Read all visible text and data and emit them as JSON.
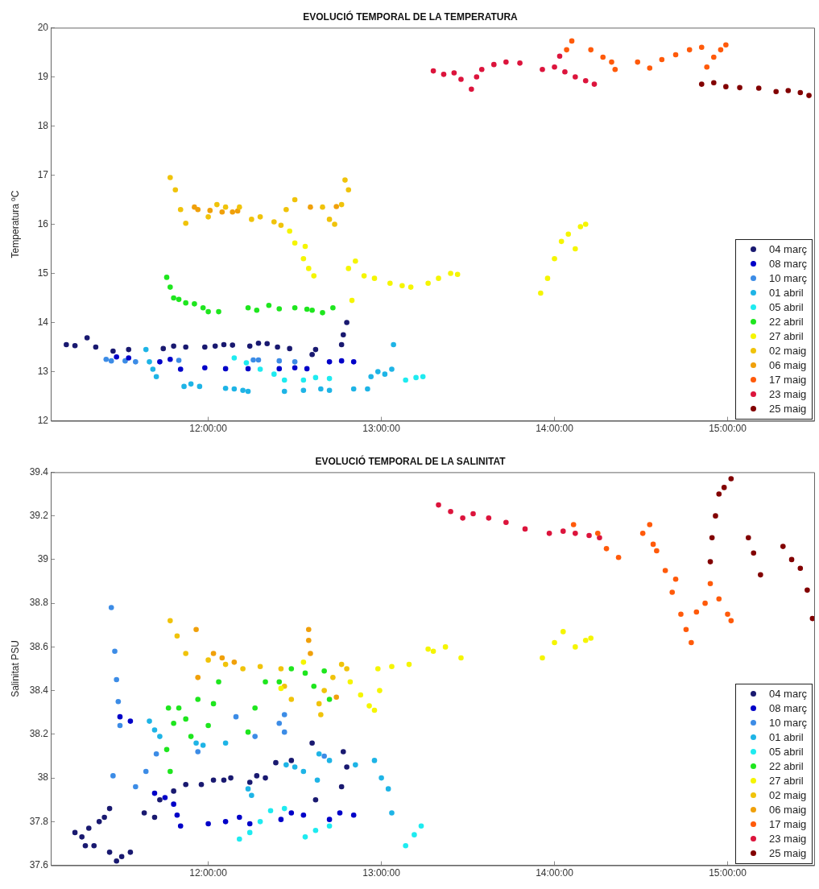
{
  "chart_data": [
    {
      "type": "scatter",
      "title": "EVOLUCIÓ TEMPORAL DE LA TEMPERATURA",
      "ylabel": "Temperatura ºC",
      "xlim": [
        11.09,
        15.5
      ],
      "xticks": [
        {
          "value": 12,
          "label": "12:00:00"
        },
        {
          "value": 13,
          "label": "13:00:00"
        },
        {
          "value": 14,
          "label": "14:00:00"
        },
        {
          "value": 15,
          "label": "15:00:00"
        }
      ],
      "ylim": [
        12,
        20
      ],
      "yticks": [
        12,
        13,
        14,
        15,
        16,
        17,
        18,
        19,
        20
      ],
      "legend": "bottom right",
      "marker": "circle",
      "series": [
        {
          "name": "04 març",
          "color": "#191970",
          "x": [
            11.18,
            11.23,
            11.3,
            11.35,
            11.45,
            11.54,
            11.74,
            11.8,
            11.87,
            11.98,
            12.04,
            12.09,
            12.14,
            12.24,
            12.29,
            12.34,
            12.4,
            12.47,
            12.6,
            12.62,
            12.77,
            12.78,
            12.8
          ],
          "values": [
            13.55,
            13.53,
            13.69,
            13.5,
            13.42,
            13.45,
            13.47,
            13.52,
            13.5,
            13.5,
            13.52,
            13.55,
            13.54,
            13.52,
            13.58,
            13.57,
            13.5,
            13.47,
            13.35,
            13.45,
            13.55,
            13.75,
            14.0
          ]
        },
        {
          "name": "08 març",
          "color": "#0000c8",
          "x": [
            11.47,
            11.54,
            11.72,
            11.78,
            11.84,
            11.98,
            12.1,
            12.23,
            12.41,
            12.5,
            12.57,
            12.7,
            12.77,
            12.84
          ],
          "values": [
            13.3,
            13.28,
            13.2,
            13.25,
            13.05,
            13.08,
            13.06,
            13.06,
            13.06,
            13.08,
            13.06,
            13.2,
            13.22,
            13.2
          ]
        },
        {
          "name": "10 març",
          "color": "#3c8ce6",
          "x": [
            11.41,
            11.44,
            11.52,
            11.58,
            11.83,
            12.26,
            12.29,
            12.41,
            12.5
          ],
          "values": [
            13.25,
            13.22,
            13.22,
            13.2,
            13.23,
            13.24,
            13.24,
            13.22,
            13.2
          ]
        },
        {
          "name": "01 abril",
          "color": "#1eb4e6",
          "x": [
            11.64,
            11.66,
            11.68,
            11.7,
            11.86,
            11.9,
            11.95,
            12.1,
            12.15,
            12.2,
            12.23,
            12.44,
            12.55,
            12.65,
            12.7,
            12.84,
            12.92,
            12.94,
            12.98,
            13.02,
            13.06,
            13.07
          ],
          "values": [
            13.45,
            13.2,
            13.05,
            12.9,
            12.7,
            12.75,
            12.7,
            12.66,
            12.65,
            12.62,
            12.6,
            12.6,
            12.62,
            12.65,
            12.62,
            12.65,
            12.65,
            12.9,
            13.0,
            12.95,
            13.05,
            13.55
          ]
        },
        {
          "name": "05 abril",
          "color": "#1eebf0",
          "x": [
            12.15,
            12.22,
            12.3,
            12.38,
            12.44,
            12.55,
            12.62,
            12.7,
            13.14,
            13.2,
            13.24
          ],
          "values": [
            13.28,
            13.18,
            13.05,
            12.95,
            12.83,
            12.83,
            12.88,
            12.86,
            12.83,
            12.88,
            12.9
          ]
        },
        {
          "name": "22 abril",
          "color": "#1ee61e",
          "x": [
            11.76,
            11.78,
            11.8,
            11.83,
            11.87,
            11.92,
            11.97,
            12.0,
            12.06,
            12.23,
            12.28,
            12.35,
            12.41,
            12.5,
            12.57,
            12.6,
            12.66,
            12.72
          ],
          "values": [
            14.92,
            14.72,
            14.5,
            14.47,
            14.4,
            14.38,
            14.3,
            14.22,
            14.22,
            14.3,
            14.25,
            14.35,
            14.28,
            14.3,
            14.27,
            14.25,
            14.2,
            14.3
          ]
        },
        {
          "name": "27 abril",
          "color": "#f5f500",
          "x": [
            12.47,
            12.5,
            12.56,
            12.55,
            12.58,
            12.61,
            12.81,
            12.85,
            12.9,
            12.96,
            13.05,
            13.12,
            13.17,
            12.83,
            13.27,
            13.33,
            13.4,
            13.44,
            13.92,
            13.96,
            14.0,
            14.04,
            14.08,
            14.12,
            14.15,
            14.18
          ],
          "values": [
            15.86,
            15.62,
            15.55,
            15.3,
            15.1,
            14.95,
            15.1,
            15.25,
            14.95,
            14.9,
            14.8,
            14.75,
            14.72,
            14.45,
            14.8,
            14.9,
            15.0,
            14.98,
            14.6,
            14.9,
            15.3,
            15.65,
            15.8,
            15.5,
            15.95,
            16.0
          ]
        },
        {
          "name": "02 maig",
          "color": "#f0c30a",
          "x": [
            11.78,
            11.81,
            11.84,
            11.87,
            12.0,
            12.05,
            12.1,
            12.18,
            12.25,
            12.3,
            12.38,
            12.42,
            12.45,
            12.5,
            12.66,
            12.7,
            12.73,
            12.77,
            12.79,
            12.81
          ],
          "values": [
            16.95,
            16.7,
            16.3,
            16.02,
            16.15,
            16.4,
            16.35,
            16.35,
            16.1,
            16.15,
            16.05,
            15.98,
            16.3,
            16.5,
            16.35,
            16.1,
            16.0,
            16.4,
            16.9,
            16.7
          ]
        },
        {
          "name": "06 maig",
          "color": "#f0a00a",
          "x": [
            11.92,
            11.94,
            12.01,
            12.08,
            12.14,
            12.17,
            12.59,
            12.74
          ],
          "values": [
            16.35,
            16.3,
            16.28,
            16.25,
            16.25,
            16.27,
            16.35,
            16.36
          ]
        },
        {
          "name": "17 maig",
          "color": "#ff5a0a",
          "x": [
            14.07,
            14.1,
            14.21,
            14.28,
            14.33,
            14.35,
            14.48,
            14.55,
            14.62,
            14.7,
            14.78,
            14.85,
            14.88,
            14.92,
            14.96,
            14.99
          ],
          "values": [
            19.55,
            19.73,
            19.55,
            19.4,
            19.3,
            19.15,
            19.3,
            19.18,
            19.35,
            19.45,
            19.55,
            19.6,
            19.2,
            19.4,
            19.55,
            19.65
          ]
        },
        {
          "name": "23 maig",
          "color": "#dc143c",
          "x": [
            13.3,
            13.36,
            13.42,
            13.46,
            13.52,
            13.55,
            13.58,
            13.65,
            13.72,
            13.8,
            13.93,
            14.0,
            14.03,
            14.06,
            14.12,
            14.18,
            14.23
          ],
          "values": [
            19.12,
            19.05,
            19.08,
            18.95,
            18.75,
            19.0,
            19.15,
            19.25,
            19.3,
            19.28,
            19.15,
            19.2,
            19.42,
            19.1,
            19.0,
            18.92,
            18.85
          ]
        },
        {
          "name": "25 maig",
          "color": "#820000",
          "x": [
            14.85,
            14.92,
            14.99,
            15.07,
            15.18,
            15.28,
            15.35,
            15.42,
            15.47
          ],
          "values": [
            18.85,
            18.88,
            18.8,
            18.78,
            18.77,
            18.7,
            18.72,
            18.68,
            18.62
          ]
        }
      ]
    },
    {
      "type": "scatter",
      "title": "EVOLUCIÓ TEMPORAL DE LA SALINITAT",
      "ylabel": "Salinitat PSU",
      "xlim": [
        11.09,
        15.5
      ],
      "xticks": [
        {
          "value": 12,
          "label": "12:00:00"
        },
        {
          "value": 13,
          "label": "13:00:00"
        },
        {
          "value": 14,
          "label": "14:00:00"
        },
        {
          "value": 15,
          "label": "15:00:00"
        }
      ],
      "ylim": [
        37.6,
        39.4
      ],
      "yticks": [
        37.6,
        37.8,
        38,
        38.2,
        38.4,
        38.6,
        38.8,
        39,
        39.2,
        39.4
      ],
      "legend": "bottom right",
      "marker": "circle",
      "series": [
        {
          "name": "04 març",
          "color": "#191970",
          "x": [
            11.23,
            11.27,
            11.31,
            11.29,
            11.34,
            11.37,
            11.4,
            11.43,
            11.43,
            11.47,
            11.5,
            11.55,
            11.63,
            11.69,
            11.72,
            11.8,
            11.87,
            11.96,
            12.03,
            12.09,
            12.13,
            12.24,
            12.28,
            12.33,
            12.39,
            12.48,
            12.6,
            12.62,
            12.77,
            12.78,
            12.8
          ],
          "values": [
            37.75,
            37.73,
            37.77,
            37.69,
            37.69,
            37.8,
            37.82,
            37.86,
            37.66,
            37.62,
            37.64,
            37.66,
            37.84,
            37.82,
            37.9,
            37.94,
            37.97,
            37.97,
            37.99,
            37.99,
            38.0,
            37.98,
            38.01,
            38.0,
            38.07,
            38.08,
            38.16,
            37.9,
            37.96,
            38.12,
            38.05
          ]
        },
        {
          "name": "08 març",
          "color": "#0000c8",
          "x": [
            11.49,
            11.55,
            11.69,
            11.75,
            11.8,
            11.82,
            11.84,
            12.0,
            12.1,
            12.18,
            12.24,
            12.42,
            12.48,
            12.55,
            12.7,
            12.76,
            12.84
          ],
          "values": [
            38.28,
            38.26,
            37.93,
            37.91,
            37.88,
            37.83,
            37.78,
            37.79,
            37.8,
            37.82,
            37.79,
            37.81,
            37.84,
            37.83,
            37.81,
            37.84,
            37.83
          ]
        },
        {
          "name": "10 març",
          "color": "#3c8ce6",
          "x": [
            11.44,
            11.46,
            11.47,
            11.48,
            11.49,
            11.45,
            11.58,
            11.64,
            11.7,
            11.94,
            12.16,
            12.27,
            12.41,
            12.44,
            12.44,
            12.67
          ],
          "values": [
            38.78,
            38.58,
            38.45,
            38.35,
            38.24,
            38.01,
            37.96,
            38.03,
            38.11,
            38.12,
            38.28,
            38.19,
            38.25,
            38.29,
            38.21,
            38.1
          ]
        },
        {
          "name": "01 abril",
          "color": "#1eb4e6",
          "x": [
            11.66,
            11.69,
            11.72,
            11.93,
            11.97,
            12.1,
            12.23,
            12.25,
            12.45,
            12.5,
            12.55,
            12.63,
            12.64,
            12.7,
            12.85,
            12.96,
            13.0,
            13.04,
            13.06
          ],
          "values": [
            38.26,
            38.22,
            38.19,
            38.16,
            38.15,
            38.16,
            37.95,
            37.92,
            38.06,
            38.05,
            38.03,
            37.99,
            38.11,
            38.08,
            38.06,
            38.08,
            38.0,
            37.95,
            37.84
          ]
        },
        {
          "name": "05 abril",
          "color": "#1eebf0",
          "x": [
            12.18,
            12.24,
            12.3,
            12.36,
            12.44,
            12.56,
            12.62,
            12.7,
            13.14,
            13.19,
            13.23
          ],
          "values": [
            37.72,
            37.75,
            37.8,
            37.85,
            37.86,
            37.73,
            37.76,
            37.78,
            37.69,
            37.74,
            37.78
          ]
        },
        {
          "name": "22 abril",
          "color": "#1ee61e",
          "x": [
            11.76,
            11.78,
            11.77,
            11.8,
            11.83,
            11.87,
            11.9,
            11.94,
            12.0,
            12.03,
            12.06,
            12.23,
            12.27,
            12.33,
            12.41,
            12.48,
            12.56,
            12.61,
            12.67,
            12.7
          ],
          "values": [
            38.13,
            38.03,
            38.32,
            38.25,
            38.32,
            38.27,
            38.19,
            38.36,
            38.24,
            38.34,
            38.44,
            38.21,
            38.32,
            38.44,
            38.44,
            38.5,
            38.48,
            38.42,
            38.49,
            38.36
          ]
        },
        {
          "name": "27 abril",
          "color": "#f5f500",
          "x": [
            12.42,
            12.55,
            12.82,
            12.88,
            12.93,
            12.96,
            12.99,
            12.98,
            13.06,
            13.16,
            13.27,
            13.3,
            13.37,
            13.46,
            13.93,
            14.0,
            14.05,
            14.12,
            14.18,
            14.21
          ],
          "values": [
            38.41,
            38.53,
            38.44,
            38.38,
            38.33,
            38.31,
            38.4,
            38.5,
            38.51,
            38.52,
            38.59,
            38.58,
            38.6,
            38.55,
            38.55,
            38.62,
            38.67,
            38.6,
            38.63,
            38.64
          ]
        },
        {
          "name": "02 maig",
          "color": "#f0c30a",
          "x": [
            11.78,
            11.82,
            11.87,
            12.0,
            12.1,
            12.2,
            12.3,
            12.42,
            12.44,
            12.48,
            12.64,
            12.65,
            12.67,
            12.72,
            12.77,
            12.8
          ],
          "values": [
            38.72,
            38.65,
            38.57,
            38.54,
            38.52,
            38.5,
            38.51,
            38.5,
            38.42,
            38.36,
            38.34,
            38.29,
            38.4,
            38.46,
            38.52,
            38.5
          ]
        },
        {
          "name": "06 maig",
          "color": "#f0a00a",
          "x": [
            11.93,
            11.94,
            12.03,
            12.08,
            12.15,
            12.58,
            12.58,
            12.59,
            12.74
          ],
          "values": [
            38.68,
            38.46,
            38.57,
            38.55,
            38.53,
            38.68,
            38.63,
            38.57,
            38.37
          ]
        },
        {
          "name": "17 maig",
          "color": "#ff5a0a",
          "x": [
            14.11,
            14.25,
            14.3,
            14.37,
            14.51,
            14.55,
            14.57,
            14.59,
            14.64,
            14.7,
            14.68,
            14.73,
            14.76,
            14.79,
            14.82,
            14.87,
            14.9,
            14.95,
            15.0,
            15.02
          ],
          "values": [
            39.16,
            39.12,
            39.05,
            39.01,
            39.12,
            39.16,
            39.07,
            39.04,
            38.95,
            38.91,
            38.85,
            38.75,
            38.68,
            38.62,
            38.76,
            38.8,
            38.89,
            38.82,
            38.75,
            38.72
          ]
        },
        {
          "name": "23 maig",
          "color": "#dc143c",
          "x": [
            13.33,
            13.4,
            13.47,
            13.53,
            13.62,
            13.72,
            13.83,
            13.97,
            14.05,
            14.12,
            14.2,
            14.26
          ],
          "values": [
            39.25,
            39.22,
            39.19,
            39.21,
            39.19,
            39.17,
            39.14,
            39.12,
            39.13,
            39.12,
            39.11,
            39.1
          ]
        },
        {
          "name": "25 maig",
          "color": "#820000",
          "x": [
            14.9,
            14.91,
            14.93,
            14.95,
            14.98,
            15.02,
            15.12,
            15.15,
            15.19,
            15.32,
            15.37,
            15.42,
            15.46,
            15.49
          ],
          "values": [
            38.99,
            39.1,
            39.2,
            39.3,
            39.33,
            39.37,
            39.1,
            39.03,
            38.93,
            39.06,
            39.0,
            38.96,
            38.86,
            38.73
          ]
        }
      ]
    }
  ]
}
